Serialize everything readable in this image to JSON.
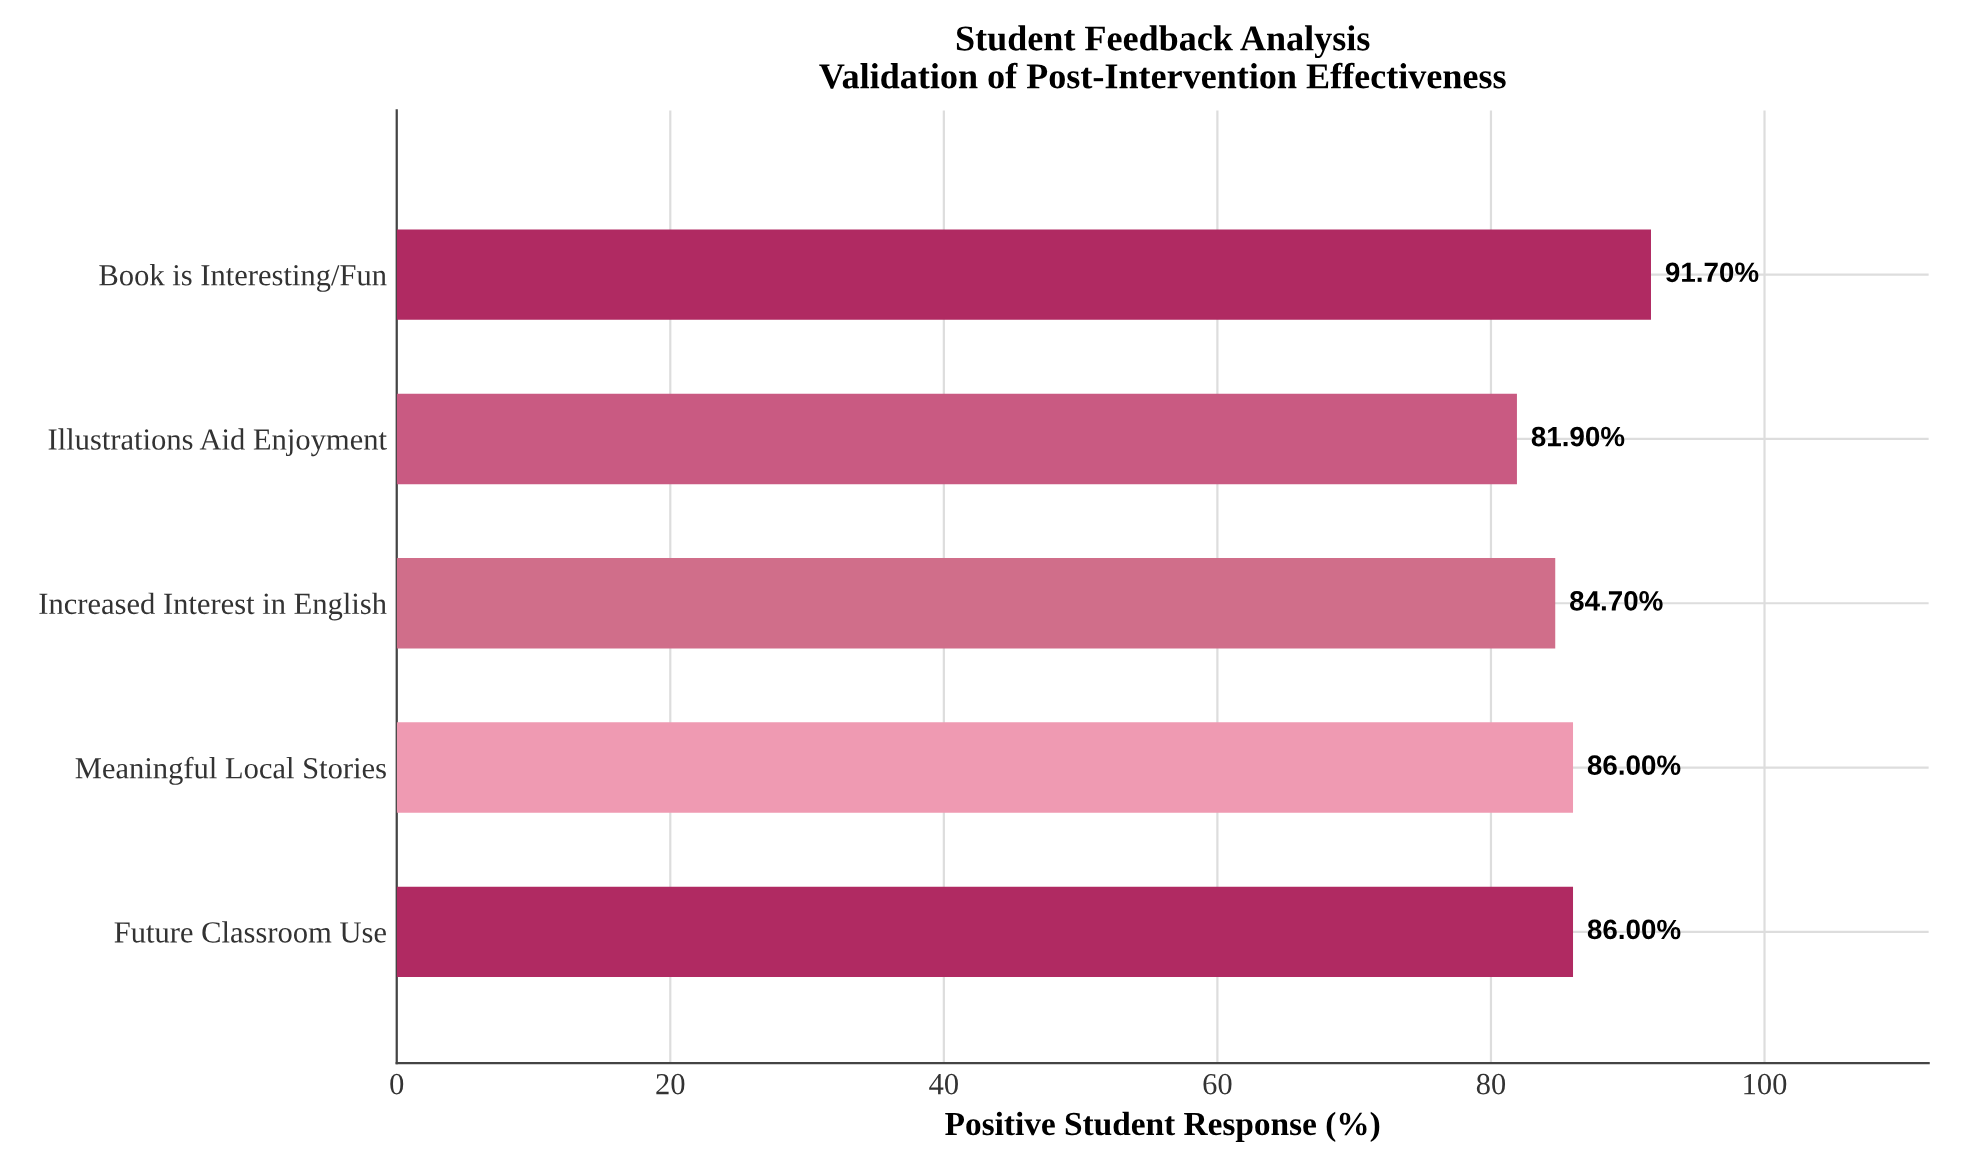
{
  "chart_data": {
    "type": "bar",
    "orientation": "horizontal",
    "title": "Student Feedback Analysis\nValidation of Post-Intervention Effectiveness",
    "xlabel": "Positive Student Response (%)",
    "categories": [
      "Book is Interesting/Fun",
      "Illustrations Aid Enjoyment",
      "Increased Interest in English",
      "Meaningful Local Stories",
      "Future Classroom Use"
    ],
    "values": [
      91.7,
      81.9,
      84.7,
      86.0,
      86.0
    ],
    "colors": [
      "#b02a62",
      "#c95a82",
      "#d06e8a",
      "#ef9ab2",
      "#b02a62"
    ],
    "value_labels": [
      "91.70%",
      "81.90%",
      "84.70%",
      "86.00%",
      "86.00%"
    ],
    "xlim": [
      0,
      112
    ],
    "xticks": [
      0,
      20,
      40,
      60,
      80,
      100
    ],
    "grid": true
  }
}
